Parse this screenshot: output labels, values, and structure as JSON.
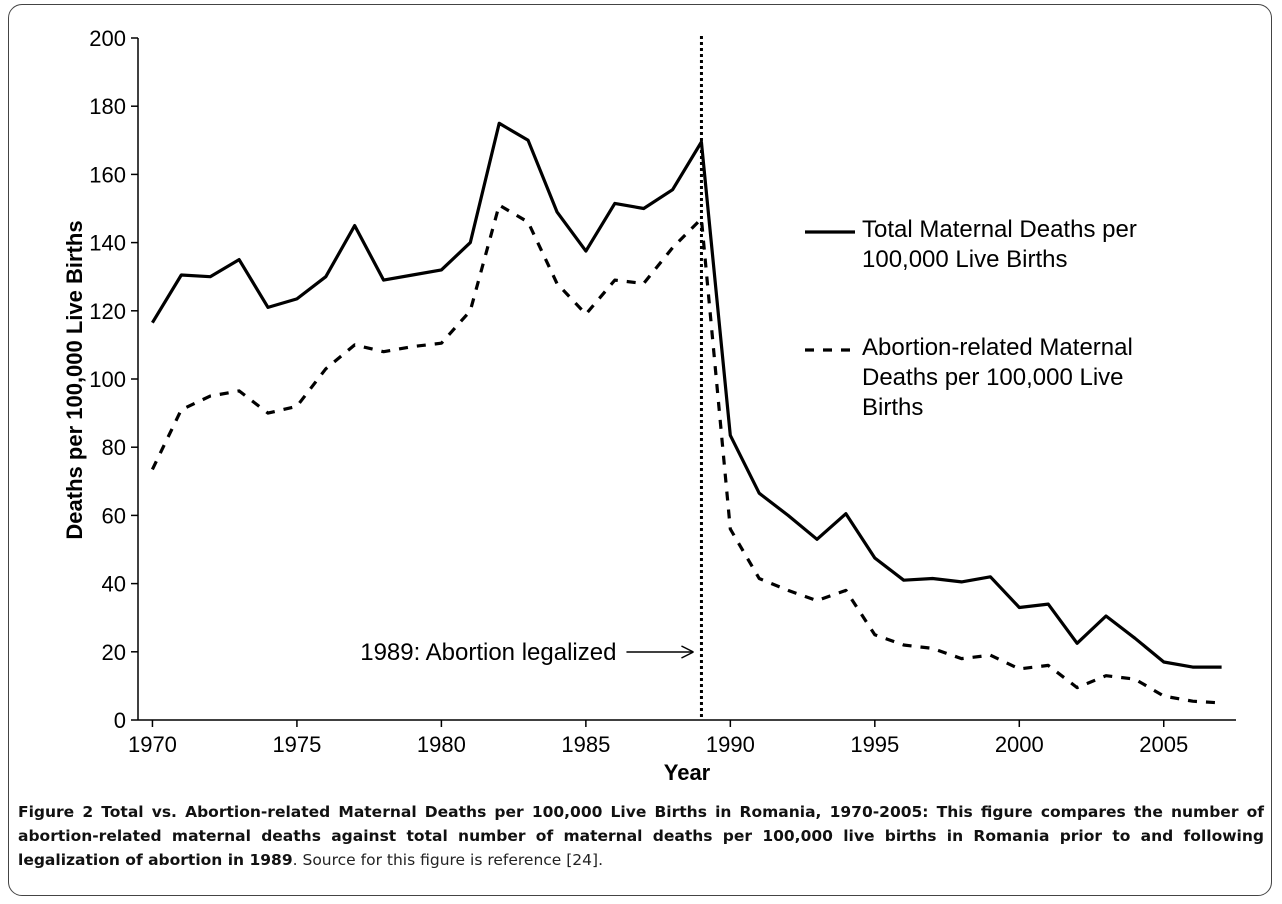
{
  "chart_data": {
    "type": "line",
    "y_label": "Deaths per 100,000 Live Births",
    "x_label": "Year",
    "x": [
      1970,
      1971,
      1972,
      1973,
      1974,
      1975,
      1976,
      1977,
      1978,
      1979,
      1980,
      1981,
      1982,
      1983,
      1984,
      1985,
      1986,
      1987,
      1988,
      1989,
      1990,
      1991,
      1992,
      1993,
      1994,
      1995,
      1996,
      1997,
      1998,
      1999,
      2000,
      2001,
      2002,
      2003,
      2004,
      2005,
      2006,
      2007
    ],
    "series": [
      {
        "name": "Total Maternal Deaths per 100,000 Live Births",
        "color": "#000000",
        "dash": "solid",
        "values": [
          116.5,
          130.5,
          130,
          135,
          121,
          123.5,
          130,
          145,
          129,
          130.5,
          132,
          140,
          175,
          170,
          149,
          137.5,
          151.5,
          150,
          155.5,
          169.5,
          83.5,
          66.5,
          60,
          53,
          60.5,
          47.5,
          41,
          41.5,
          40.5,
          42,
          33,
          34,
          22.5,
          30.5,
          24,
          17,
          15.5,
          15.5
        ]
      },
      {
        "name": "Abortion-related Maternal Deaths per 100,000 Live Births",
        "color": "#000000",
        "dash": "dashed",
        "values": [
          73.5,
          91,
          95,
          96.5,
          90,
          92,
          103,
          110,
          108,
          109.5,
          110.5,
          120,
          151,
          146,
          128,
          119,
          129,
          128,
          138.5,
          147,
          56,
          41.5,
          38,
          35,
          38,
          25,
          22,
          21,
          18,
          19,
          15,
          16,
          9.5,
          13,
          12,
          7,
          5.5,
          5
        ]
      }
    ],
    "xlim": [
      1969.5,
      2007.5
    ],
    "xticks": [
      1970,
      1975,
      1980,
      1985,
      1990,
      1995,
      2000,
      2005
    ],
    "ylim": [
      0,
      200
    ],
    "yticks": [
      0,
      20,
      40,
      60,
      80,
      100,
      120,
      140,
      160,
      180,
      200
    ],
    "grid": false,
    "legend": "center-right",
    "vline": 1989,
    "annotation": "1989: Abortion legalized"
  },
  "caption": {
    "bold": "Figure 2 Total vs. Abortion-related Maternal Deaths per 100,000 Live Births in Romania, 1970-2005: This figure compares the number of abortion-related maternal deaths against total number of maternal deaths per 100,000 live births in Romania prior to and following legalization of abortion in 1989",
    "text": ". Source for this figure is reference [24]."
  }
}
